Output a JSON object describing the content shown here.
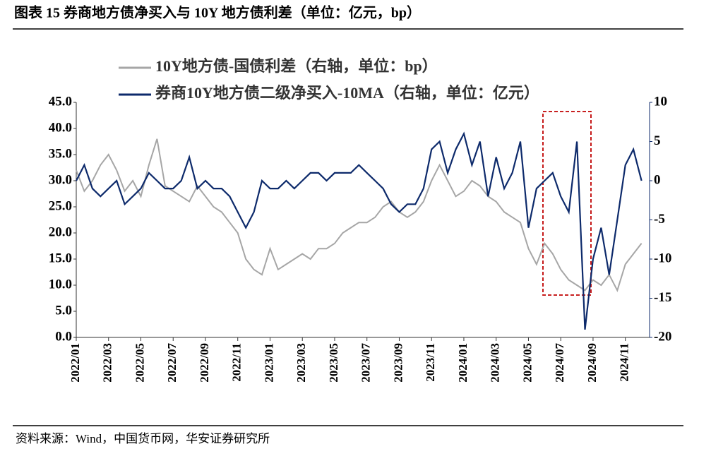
{
  "chart_data": {
    "type": "line",
    "title": "图表 15 券商地方债净买入与 10Y 地方债利差（单位：亿元，bp）",
    "source": "资料来源：Wind，中国货币网，华安证券研究所",
    "categories": [
      "2022/01",
      null,
      null,
      null,
      "2022/03",
      null,
      null,
      null,
      "2022/05",
      null,
      null,
      null,
      "2022/07",
      null,
      null,
      null,
      "2022/09",
      null,
      null,
      null,
      "2022/11",
      null,
      null,
      null,
      "2023/01",
      null,
      null,
      null,
      "2023/03",
      null,
      null,
      null,
      "2023/05",
      null,
      null,
      null,
      "2023/07",
      null,
      null,
      null,
      "2023/09",
      null,
      null,
      null,
      "2023/11",
      null,
      null,
      null,
      "2024/01",
      null,
      null,
      null,
      "2024/03",
      null,
      null,
      null,
      "2024/05",
      null,
      null,
      null,
      "2024/07",
      null,
      null,
      null,
      "2024/09",
      null,
      null,
      null,
      "2024/11",
      null,
      null
    ],
    "series": [
      {
        "name": "10Y地方债-国债利差（右轴，单位：bp）",
        "color": "#a6a6a6",
        "axis": "y",
        "values": [
          32,
          28,
          30,
          33,
          35,
          32,
          28,
          30,
          27,
          33,
          38,
          29,
          28,
          27,
          26,
          29,
          27,
          25,
          24,
          22,
          20,
          15,
          13,
          12,
          17,
          13,
          14,
          15,
          16,
          15,
          17,
          17,
          18,
          20,
          21,
          22,
          22,
          23,
          25,
          26,
          24,
          23,
          24,
          26,
          30,
          33,
          30,
          27,
          28,
          30,
          29,
          27,
          26,
          24,
          23,
          22,
          17,
          14,
          18,
          16,
          13,
          11,
          10,
          9,
          11,
          10,
          12,
          9,
          14,
          16,
          18
        ]
      },
      {
        "name": "券商10Y地方债二级净买入-10MA（右轴，单位：亿元）",
        "color": "#0d2a6b",
        "axis": "y2",
        "values": [
          0,
          2,
          -1,
          -2,
          -1,
          0,
          -3,
          -2,
          -1,
          1,
          0,
          -1,
          -1,
          0,
          3,
          -1,
          0,
          -1,
          -1,
          -2,
          -4,
          -6,
          -4,
          0,
          -1,
          -1,
          0,
          -1,
          0,
          1,
          1,
          0,
          1,
          1,
          1,
          2,
          1,
          0,
          -1,
          -3,
          -4,
          -3,
          -3,
          -1,
          4,
          5,
          1,
          4,
          6,
          2,
          5,
          -2,
          3,
          -1,
          1,
          5,
          -6,
          -1,
          0,
          1,
          -2,
          -4,
          5,
          -19,
          -10,
          -6,
          -12,
          -5,
          2,
          4,
          0
        ]
      }
    ],
    "ylim": [
      0,
      45
    ],
    "yticks": [
      {
        "value": 0,
        "label": "0.0"
      },
      {
        "value": 5,
        "label": "5.0"
      },
      {
        "value": 10,
        "label": "10.0"
      },
      {
        "value": 15,
        "label": "15.0"
      },
      {
        "value": 20,
        "label": "20.0"
      },
      {
        "value": 25,
        "label": "25.0"
      },
      {
        "value": 30,
        "label": "30.0"
      },
      {
        "value": 35,
        "label": "35.0"
      },
      {
        "value": 40,
        "label": "40.0"
      },
      {
        "value": 45,
        "label": "45.0"
      }
    ],
    "y2lim": [
      -20,
      10
    ],
    "y2ticks": [
      -20,
      -15,
      -10,
      -5,
      0,
      5,
      10
    ],
    "grid": false
  }
}
